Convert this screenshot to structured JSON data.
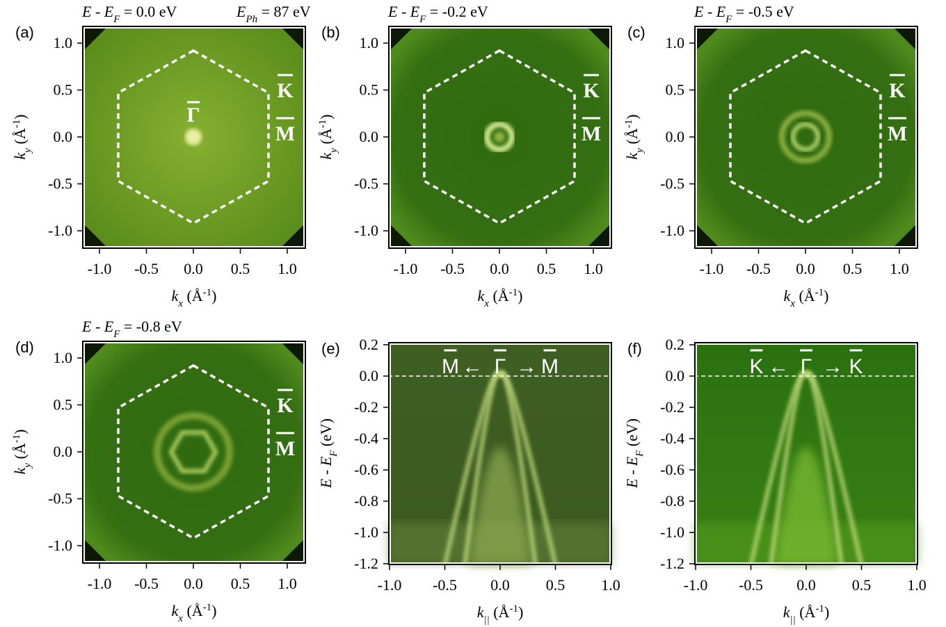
{
  "panels": [
    {
      "label": "(a)",
      "title": {
        "symbol": "E - E",
        "subscript": "F",
        "value": " = 0.0 eV"
      },
      "photon": {
        "symbol": "E",
        "subscript": "Ph",
        "value": " = 87 eV"
      },
      "y_label": {
        "symbol": "k",
        "subscript": "y",
        "unit": " (Å",
        "superscript": "-1",
        "close": ")"
      },
      "x_label": {
        "symbol": "k",
        "subscript": "x",
        "unit": " (Å",
        "superscript": "-1",
        "close": ")"
      },
      "y_ticks": [
        "1.0",
        "0.5",
        "0.0",
        "-0.5",
        "-1.0"
      ],
      "x_ticks": [
        "-1.0",
        "-0.5",
        "0.0",
        "0.5",
        "1.0"
      ],
      "points": {
        "gamma": "Γ",
        "k": "K",
        "m": "M"
      }
    },
    {
      "label": "(b)",
      "title": {
        "symbol": "E - E",
        "subscript": "F",
        "value": " = -0.2 eV"
      },
      "y_label": {
        "symbol": "k",
        "subscript": "y",
        "unit": " (Å",
        "superscript": "-1",
        "close": ")"
      },
      "x_label": {
        "symbol": "k",
        "subscript": "x",
        "unit": " (Å",
        "superscript": "-1",
        "close": ")"
      },
      "y_ticks": [
        "1.0",
        "0.5",
        "0.0",
        "-0.5",
        "-1.0"
      ],
      "x_ticks": [
        "-1.0",
        "-0.5",
        "0.0",
        "0.5",
        "1.0"
      ],
      "points": {
        "k": "K",
        "m": "M"
      }
    },
    {
      "label": "(c)",
      "title": {
        "symbol": "E - E",
        "subscript": "F",
        "value": " = -0.5 eV"
      },
      "y_label": {
        "symbol": "k",
        "subscript": "y",
        "unit": " (Å",
        "superscript": "-1",
        "close": ")"
      },
      "x_label": {
        "symbol": "k",
        "subscript": "x",
        "unit": " (Å",
        "superscript": "-1",
        "close": ")"
      },
      "y_ticks": [
        "1.0",
        "0.5",
        "0.0",
        "-0.5",
        "-1.0"
      ],
      "x_ticks": [
        "-1.0",
        "-0.5",
        "0.0",
        "0.5",
        "1.0"
      ],
      "points": {
        "k": "K",
        "m": "M"
      }
    },
    {
      "label": "(d)",
      "title": {
        "symbol": "E - E",
        "subscript": "F",
        "value": " = -0.8 eV"
      },
      "y_label": {
        "symbol": "k",
        "subscript": "y",
        "unit": " (Å",
        "superscript": "-1",
        "close": ")"
      },
      "x_label": {
        "symbol": "k",
        "subscript": "x",
        "unit": " (Å",
        "superscript": "-1",
        "close": ")"
      },
      "y_ticks": [
        "1.0",
        "0.5",
        "0.0",
        "-0.5",
        "-1.0"
      ],
      "x_ticks": [
        "-1.0",
        "-0.5",
        "0.0",
        "0.5",
        "1.0"
      ],
      "points": {
        "k": "K",
        "m": "M"
      }
    },
    {
      "label": "(e)",
      "y_label": {
        "symbol": "E - E",
        "subscript": "F",
        "unit": " (eV)"
      },
      "x_label": {
        "symbol": "k",
        "subscript": "||",
        "unit": " (Å",
        "superscript": "-1",
        "close": ")"
      },
      "y_ticks": [
        "0.2",
        "0.0",
        "-0.2",
        "-0.4",
        "-0.6",
        "-0.8",
        "-1.0",
        "-1.2"
      ],
      "x_ticks": [
        "-1.0",
        "-0.5",
        "0.0",
        "0.5",
        "1.0"
      ],
      "annotation": [
        "M",
        "←",
        "Γ",
        "→",
        "M"
      ]
    },
    {
      "label": "(f)",
      "y_label": {
        "symbol": "E - E",
        "subscript": "F",
        "unit": " (eV)"
      },
      "x_label": {
        "symbol": "k",
        "subscript": "||",
        "unit": " (Å",
        "superscript": "-1",
        "close": ")"
      },
      "y_ticks": [
        "0.2",
        "0.0",
        "-0.2",
        "-0.4",
        "-0.6",
        "-0.8",
        "-1.0",
        "-1.2"
      ],
      "x_ticks": [
        "-1.0",
        "-0.5",
        "0.0",
        "0.5",
        "1.0"
      ],
      "annotation": [
        "K",
        "←",
        "Γ",
        "→",
        "K"
      ]
    }
  ]
}
